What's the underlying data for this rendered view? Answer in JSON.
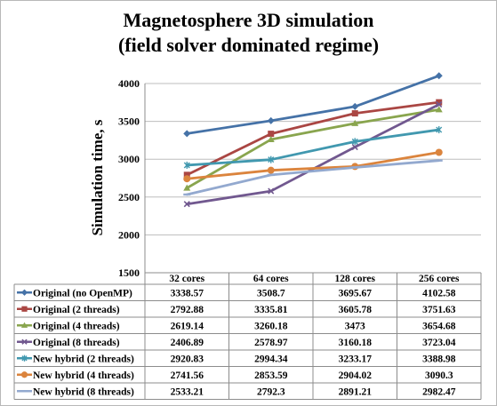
{
  "chart_data": {
    "type": "line",
    "title": "Magnetosphere 3D simulation",
    "subtitle": "(field solver dominated regime)",
    "ylabel": "Simulation time, s",
    "xlabel": "",
    "categories": [
      "32 cores",
      "64 cores",
      "128 cores",
      "256 cores"
    ],
    "ylim": [
      1500,
      4000
    ],
    "yticks": [
      1500,
      2000,
      2500,
      3000,
      3500,
      4000
    ],
    "grid": true,
    "legend": "data-table",
    "series": [
      {
        "name": "Original (no OpenMP)",
        "color": "#4572a7",
        "marker": "diamond",
        "values": [
          3338.57,
          3508.7,
          3695.67,
          4102.58
        ],
        "labels": [
          "3338.57",
          "3508.7",
          "3695.67",
          "4102.58"
        ]
      },
      {
        "name": "Original (2 threads)",
        "color": "#aa4643",
        "marker": "square",
        "values": [
          2792.88,
          3335.81,
          3605.78,
          3751.63
        ],
        "labels": [
          "2792.88",
          "3335.81",
          "3605.78",
          "3751.63"
        ]
      },
      {
        "name": "Original (4 threads)",
        "color": "#89a54e",
        "marker": "triangle",
        "values": [
          2619.14,
          3260.18,
          3473,
          3654.68
        ],
        "labels": [
          "2619.14",
          "3260.18",
          "3473",
          "3654.68"
        ]
      },
      {
        "name": "Original (8 threads)",
        "color": "#71588f",
        "marker": "x",
        "values": [
          2406.89,
          2578.97,
          3160.18,
          3723.04
        ],
        "labels": [
          "2406.89",
          "2578.97",
          "3160.18",
          "3723.04"
        ]
      },
      {
        "name": "New hybrid (2 threads)",
        "color": "#4198af",
        "marker": "star",
        "values": [
          2920.83,
          2994.34,
          3233.17,
          3388.98
        ],
        "labels": [
          "2920.83",
          "2994.34",
          "3233.17",
          "3388.98"
        ]
      },
      {
        "name": "New hybrid (4 threads)",
        "color": "#db843d",
        "marker": "circle",
        "values": [
          2741.56,
          2853.59,
          2904.02,
          3090.3
        ],
        "labels": [
          "2741.56",
          "2853.59",
          "2904.02",
          "3090.3"
        ]
      },
      {
        "name": "New hybrid (8 threads)",
        "color": "#93a9cf",
        "marker": "dash",
        "values": [
          2533.21,
          2792.3,
          2891.21,
          2982.47
        ],
        "labels": [
          "2533.21",
          "2792.3",
          "2891.21",
          "2982.47"
        ]
      }
    ]
  }
}
